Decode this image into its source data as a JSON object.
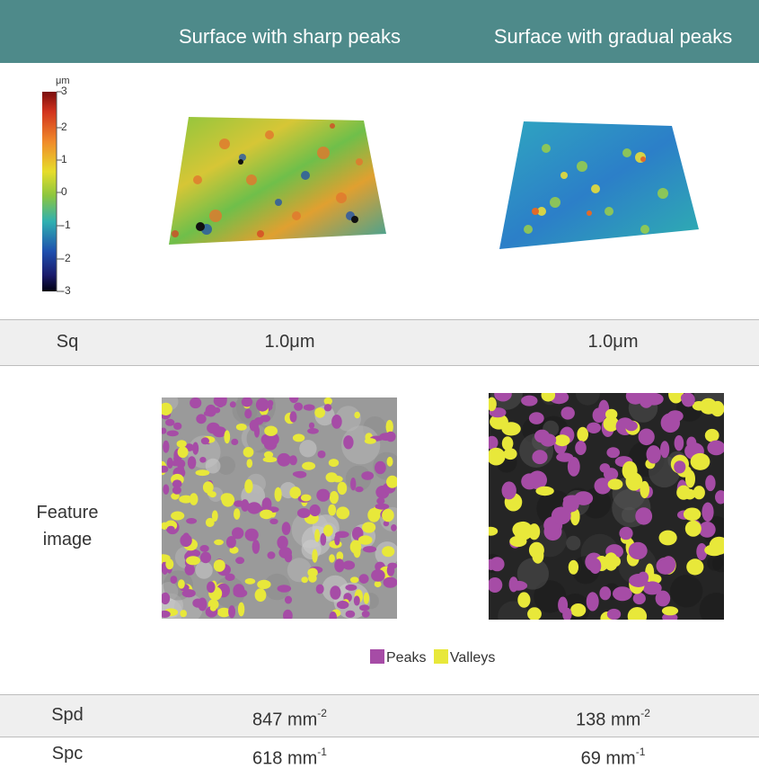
{
  "header": {
    "col1": "Surface with sharp peaks",
    "col2": "Surface with gradual peaks",
    "bg_color": "#4e8a8a"
  },
  "colorbar": {
    "unit": "μm",
    "ticks": [
      "3",
      "2",
      "1",
      "0",
      "-1",
      "-2",
      "-3"
    ]
  },
  "rows": {
    "sq": {
      "label": "Sq",
      "value1": "1.0μm",
      "value2": "1.0μm"
    },
    "feature": {
      "label_line1": "Feature",
      "label_line2": "image"
    },
    "spd": {
      "label": "Spd",
      "value1": "847 mm",
      "exp1": "-2",
      "value2": "138 mm",
      "exp2": "-2"
    },
    "spc": {
      "label": "Spc",
      "value1": "618 mm",
      "exp1": "-1",
      "value2": "69 mm",
      "exp2": "-1"
    }
  },
  "legend": {
    "peaks": "Peaks",
    "valleys": "Valleys",
    "peaks_color": "#a64ca6",
    "valleys_color": "#e8e83a"
  }
}
